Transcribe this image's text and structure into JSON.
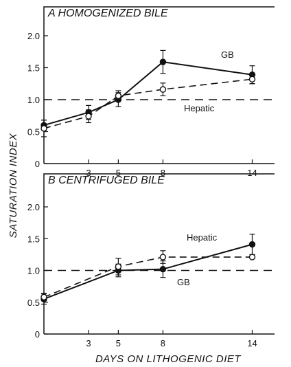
{
  "chart_data": [
    {
      "type": "line",
      "title": "A HOMOGENIZED BILE",
      "xlabel": "DAYS ON LITHOGENIC DIET",
      "ylabel": "SATURATION INDEX",
      "x_ticks": [
        3,
        5,
        8,
        14
      ],
      "xlim": [
        0,
        15.5
      ],
      "ylim": [
        0,
        2.0
      ],
      "y_ticks": [
        "0",
        "0.5",
        "1.0",
        "1.5",
        "2.0"
      ],
      "reference_line": 1.0,
      "series": [
        {
          "name": "GB",
          "style": "solid-filled-circles",
          "x": [
            0,
            3,
            5,
            8,
            14
          ],
          "y": [
            0.6,
            0.8,
            1.0,
            1.59,
            1.39
          ],
          "err": [
            0.08,
            0.11,
            0.11,
            0.18,
            0.14
          ]
        },
        {
          "name": "Hepatic",
          "style": "dashed-open-circles",
          "x": [
            0,
            3,
            5,
            8,
            14
          ],
          "y": [
            0.55,
            0.74,
            1.06,
            1.16,
            1.32
          ],
          "err": [
            0.13,
            0.1,
            0.08,
            0.1,
            0.07
          ]
        }
      ]
    },
    {
      "type": "line",
      "title": "B CENTRIFUGED BILE",
      "xlabel": "DAYS ON LITHOGENIC DIET",
      "ylabel": "SATURATION INDEX",
      "x_ticks": [
        3,
        5,
        8,
        14
      ],
      "xlim": [
        0,
        15.5
      ],
      "ylim": [
        0,
        2.0
      ],
      "y_ticks": [
        "0",
        "0.5",
        "1.0",
        "1.5",
        "2.0"
      ],
      "reference_line": 1.0,
      "series": [
        {
          "name": "GB",
          "style": "solid-filled-circles",
          "x": [
            0,
            5,
            8,
            14
          ],
          "y": [
            0.55,
            1.0,
            1.02,
            1.41
          ],
          "err": [
            0.08,
            0.1,
            0.13,
            0.16
          ]
        },
        {
          "name": "Hepatic",
          "style": "dashed-open-circles",
          "x": [
            0,
            5,
            8,
            14
          ],
          "y": [
            0.58,
            1.06,
            1.21,
            1.21
          ],
          "err": [
            0.06,
            0.13,
            0.1,
            0.02
          ]
        }
      ]
    }
  ]
}
